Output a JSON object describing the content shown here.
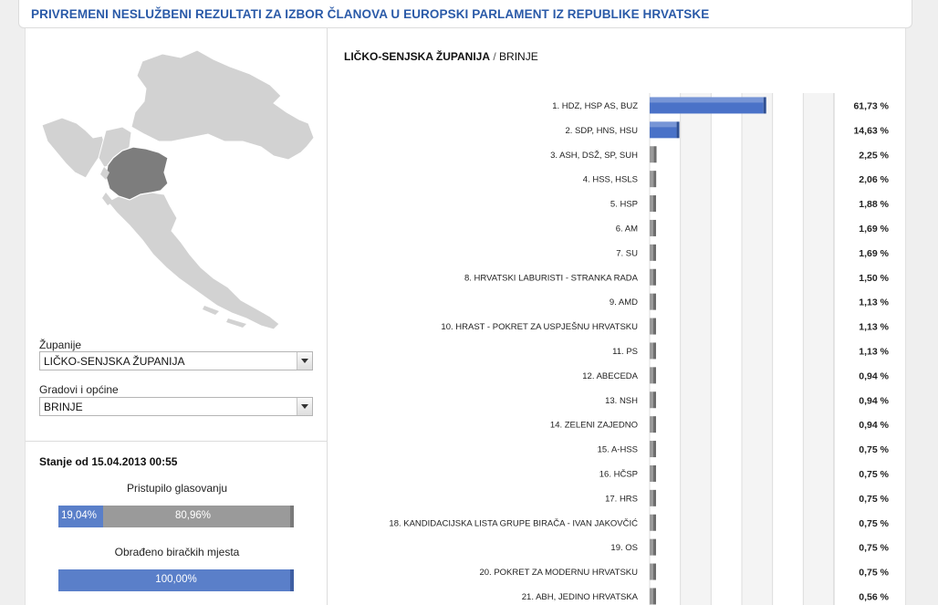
{
  "header": {
    "title": "PRIVREMENI NESLUŽBENI REZULTATI ZA IZBOR ČLANOVA U EUROPSKI PARLAMENT IZ REPUBLIKE HRVATSKE"
  },
  "breadcrumb": {
    "county": "LIČKO-SENJSKA ŽUPANIJA",
    "separator": "/",
    "municipality": "BRINJE"
  },
  "filters": {
    "county_label": "Županije",
    "county_value": "LIČKO-SENJSKA ŽUPANIJA",
    "municipality_label": "Gradovi i općine",
    "municipality_value": "BRINJE"
  },
  "status": {
    "timestamp": "Stanje od 15.04.2013 00:55",
    "turnout_title": "Pristupilo glasovanju",
    "turnout_yes": "19,04%",
    "turnout_no": "80,96%",
    "turnout_fraction": 0.1904,
    "processed_title": "Obrađeno biračkih mjesta",
    "processed_value": "100,00%",
    "processed_fraction": 1.0
  },
  "colors": {
    "accent": "#2a5aa8",
    "bar": "#4a72c8",
    "map_fill": "#d2d2d2",
    "map_selected": "#7d7d7d"
  },
  "chart_data": {
    "type": "bar",
    "orientation": "horizontal",
    "categories": [
      "1. HDZ, HSP AS, BUZ",
      "2. SDP, HNS, HSU",
      "3. ASH, DSŽ, SP, SUH",
      "4. HSS, HSLS",
      "5. HSP",
      "6. AM",
      "7. SU",
      "8. HRVATSKI LABURISTI - STRANKA RADA",
      "9. AMD",
      "10. HRAST - POKRET ZA USPJEŠNU HRVATSKU",
      "11. PS",
      "12. ABECEDA",
      "13. NSH",
      "14. ZELENI ZAJEDNO",
      "15. A-HSS",
      "16. HČSP",
      "17. HRS",
      "18. KANDIDACIJSKA LISTA GRUPE BIRAČA - IVAN JAKOVČIĆ",
      "19. OS",
      "20. POKRET ZA MODERNU HRVATSKU",
      "21. ABH, JEDINO HRVATSKA"
    ],
    "values": [
      61.73,
      14.63,
      2.25,
      2.06,
      1.88,
      1.69,
      1.69,
      1.5,
      1.13,
      1.13,
      1.13,
      0.94,
      0.94,
      0.94,
      0.75,
      0.75,
      0.75,
      0.75,
      0.75,
      0.75,
      0.56
    ],
    "labels": [
      "61,73 %",
      "14,63 %",
      "2,25 %",
      "2,06 %",
      "1,88 %",
      "1,69 %",
      "1,69 %",
      "1,50 %",
      "1,13 %",
      "1,13 %",
      "1,13 %",
      "0,94 %",
      "0,94 %",
      "0,94 %",
      "0,75 %",
      "0,75 %",
      "0,75 %",
      "0,75 %",
      "0,75 %",
      "0,75 %",
      "0,56 %"
    ],
    "xlim": [
      0,
      100
    ],
    "grid": true
  }
}
